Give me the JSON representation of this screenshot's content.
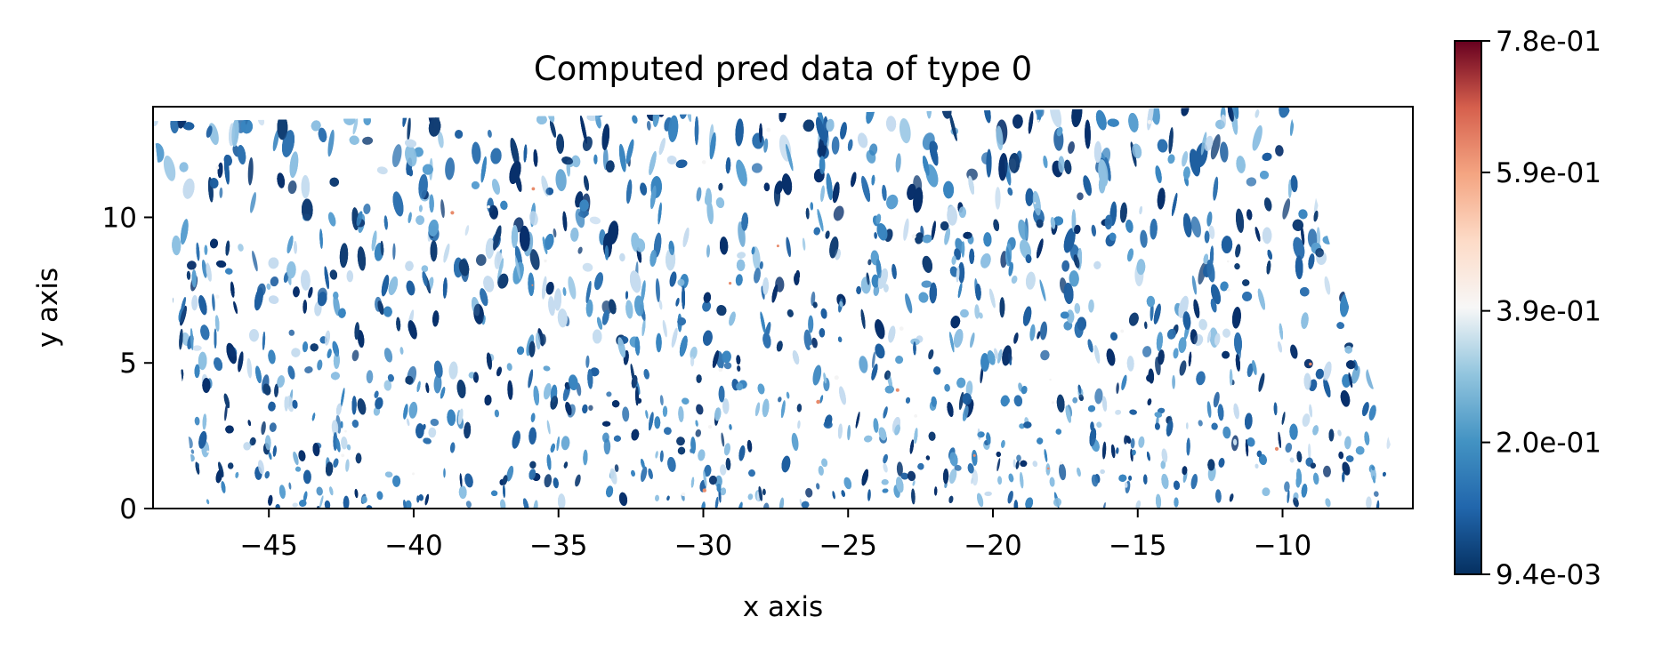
{
  "chart_data": {
    "type": "heatmap",
    "title": "Computed pred data of type 0",
    "xlabel": "x axis",
    "ylabel": "y axis",
    "xlim": [
      -49,
      -5.5
    ],
    "ylim": [
      0,
      13.8
    ],
    "x_ticks": [
      -45,
      -40,
      -35,
      -30,
      -25,
      -20,
      -15,
      -10
    ],
    "x_tick_labels": [
      "−45",
      "−40",
      "−35",
      "−30",
      "−25",
      "−20",
      "−15",
      "−10"
    ],
    "y_ticks": [
      0,
      5,
      10
    ],
    "y_tick_labels": [
      "0",
      "5",
      "10"
    ],
    "field_region": {
      "bottom_left": [
        -47.5,
        0
      ],
      "bottom_right": [
        -5.6,
        0
      ],
      "top_left": [
        -49,
        13.3
      ],
      "top_right": [
        -9.8,
        13.8
      ]
    },
    "colorbar": {
      "colormap": "RdBu_r",
      "min": 0.0094,
      "max": 0.78,
      "ticks": [
        0.0094,
        0.2,
        0.39,
        0.59,
        0.78
      ],
      "tick_labels": [
        "9.4e-03",
        "2.0e-01",
        "3.9e-01",
        "5.9e-01",
        "7.8e-01"
      ]
    },
    "colors": {
      "low": "#053061",
      "mid": "#f7f7f7",
      "high": "#67001f",
      "typical": "#2f72b0"
    },
    "grid": false,
    "legend": "none"
  }
}
